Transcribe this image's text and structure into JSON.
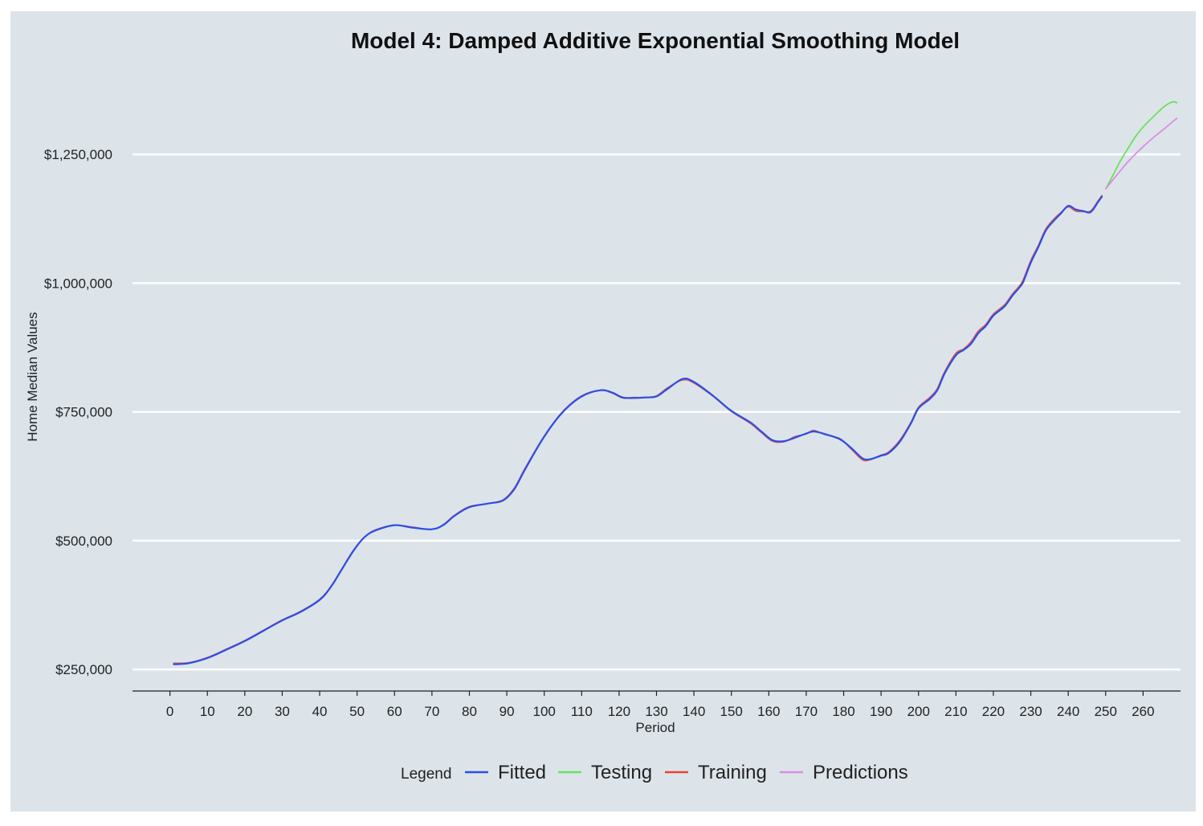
{
  "chart_data": {
    "type": "line",
    "title": "Model 4: Damped Additive Exponential Smoothing Model",
    "xlabel": "Period",
    "ylabel": "Home Median Values",
    "xlim": [
      -10,
      270
    ],
    "ylim": [
      208000,
      1400000
    ],
    "x_ticks": [
      0,
      10,
      20,
      30,
      40,
      50,
      60,
      70,
      80,
      90,
      100,
      110,
      120,
      130,
      140,
      150,
      160,
      170,
      180,
      190,
      200,
      210,
      220,
      230,
      240,
      250,
      260
    ],
    "y_ticks": [
      250000,
      500000,
      750000,
      1000000,
      1250000
    ],
    "y_tick_labels": [
      "$250,000",
      "$500,000",
      "$750,000",
      "$1,000,000",
      "$1,250,000"
    ],
    "grid": "horizontal",
    "legend_title": "Legend",
    "legend_position": "bottom",
    "series": [
      {
        "name": "Fitted",
        "color": "#2b4ee8",
        "x": [
          1,
          5,
          10,
          15,
          20,
          25,
          30,
          35,
          40,
          43,
          46,
          49,
          52,
          55,
          60,
          65,
          70,
          73,
          76,
          80,
          85,
          89,
          92,
          95,
          100,
          105,
          110,
          115,
          118,
          121,
          124,
          127,
          130,
          133,
          137,
          140,
          145,
          150,
          155,
          158,
          161,
          164,
          167,
          170,
          172,
          175,
          179,
          182,
          185,
          187,
          190,
          192,
          195,
          198,
          200,
          203,
          205,
          207,
          210,
          212,
          214,
          216,
          218,
          220,
          223,
          225,
          227,
          228,
          230,
          232,
          234,
          236,
          238,
          240,
          242,
          244,
          246,
          248,
          249
        ],
        "y": [
          260000,
          262000,
          272000,
          288000,
          305000,
          325000,
          345000,
          362000,
          385000,
          410000,
          445000,
          480000,
          507000,
          520000,
          530000,
          525000,
          522000,
          530000,
          548000,
          565000,
          572000,
          578000,
          600000,
          640000,
          702000,
          750000,
          780000,
          792000,
          788000,
          778000,
          777000,
          778000,
          780000,
          795000,
          814000,
          808000,
          782000,
          752000,
          730000,
          712000,
          695000,
          693000,
          700000,
          708000,
          712000,
          707000,
          697000,
          680000,
          660000,
          658000,
          665000,
          670000,
          692000,
          728000,
          757000,
          775000,
          792000,
          825000,
          860000,
          870000,
          882000,
          903000,
          917000,
          937000,
          955000,
          975000,
          992000,
          1003000,
          1040000,
          1070000,
          1102000,
          1120000,
          1135000,
          1150000,
          1143000,
          1140000,
          1138000,
          1158000,
          1168000
        ]
      },
      {
        "name": "Testing",
        "color": "#6ce05a",
        "x": [
          250,
          252,
          254,
          256,
          258,
          260,
          262,
          264,
          266,
          268,
          269
        ],
        "y": [
          1183000,
          1210000,
          1238000,
          1262000,
          1285000,
          1303000,
          1318000,
          1332000,
          1345000,
          1352000,
          1350000
        ]
      },
      {
        "name": "Training",
        "color": "#e8452e",
        "x": [
          1,
          5,
          10,
          15,
          20,
          25,
          30,
          35,
          40,
          43,
          46,
          49,
          52,
          55,
          60,
          65,
          70,
          73,
          76,
          80,
          85,
          89,
          92,
          95,
          100,
          105,
          110,
          115,
          118,
          121,
          124,
          127,
          130,
          133,
          137,
          140,
          145,
          150,
          155,
          158,
          161,
          164,
          167,
          170,
          172,
          175,
          179,
          182,
          185,
          187,
          190,
          192,
          195,
          198,
          200,
          203,
          205,
          207,
          210,
          212,
          214,
          216,
          218,
          220,
          223,
          225,
          227,
          228,
          230,
          232,
          234,
          236,
          238,
          240,
          242,
          244,
          246,
          248,
          249
        ],
        "y": [
          262000,
          263000,
          273000,
          289000,
          306000,
          326000,
          346000,
          363000,
          386000,
          411000,
          446000,
          481000,
          507000,
          521000,
          530000,
          526000,
          522000,
          531000,
          549000,
          566000,
          572000,
          579000,
          602000,
          642000,
          703000,
          751000,
          781000,
          792000,
          787000,
          777000,
          778000,
          778000,
          781000,
          797000,
          812000,
          806000,
          781000,
          751000,
          728000,
          710000,
          693000,
          692000,
          702000,
          707000,
          714000,
          706000,
          698000,
          678000,
          657000,
          657000,
          666000,
          672000,
          695000,
          730000,
          759000,
          778000,
          795000,
          828000,
          864000,
          872000,
          886000,
          907000,
          920000,
          940000,
          958000,
          978000,
          995000,
          1007000,
          1044000,
          1073000,
          1105000,
          1123000,
          1137000,
          1148000,
          1140000,
          1139000,
          1140000,
          1160000,
          1170000
        ]
      },
      {
        "name": "Predictions",
        "color": "#d98ee0",
        "x": [
          250,
          253,
          256,
          259,
          262,
          265,
          268,
          269
        ],
        "y": [
          1183000,
          1210000,
          1236000,
          1258000,
          1278000,
          1296000,
          1314000,
          1320000
        ]
      }
    ]
  }
}
